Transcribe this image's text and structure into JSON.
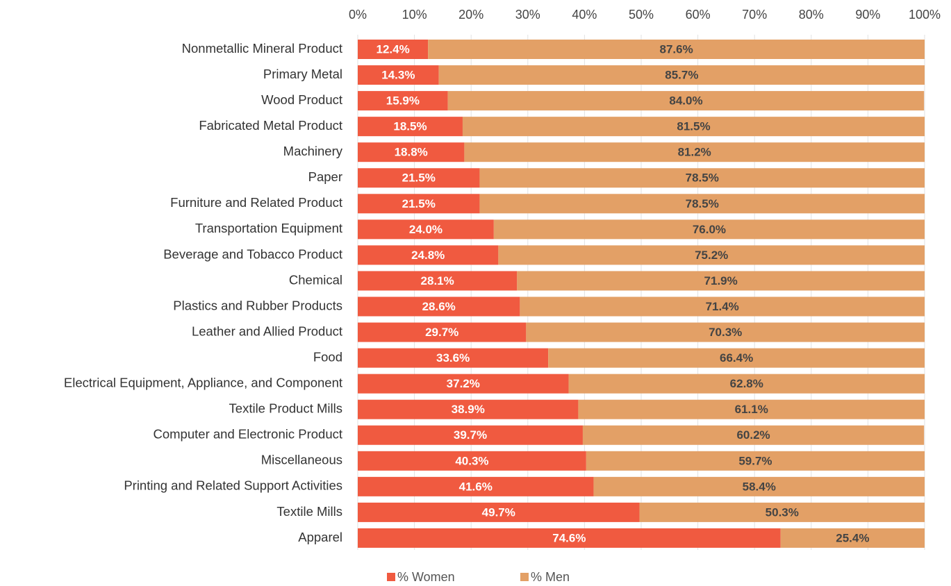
{
  "chart_data": {
    "type": "stacked_barh",
    "categories": [
      "Nonmetallic Mineral Product",
      "Primary Metal",
      "Wood Product",
      "Fabricated Metal Product",
      "Machinery",
      "Paper",
      "Furniture and Related Product",
      "Transportation Equipment",
      "Beverage and Tobacco Product",
      "Chemical",
      "Plastics and Rubber Products",
      "Leather and Allied Product",
      "Food",
      "Electrical Equipment, Appliance, and Component",
      "Textile Product Mills",
      "Computer and Electronic Product",
      "Miscellaneous",
      "Printing and Related Support Activities",
      "Textile Mills",
      "Apparel"
    ],
    "series": [
      {
        "name": "% Women",
        "color": "#f05a40",
        "values": [
          12.4,
          14.3,
          15.9,
          18.5,
          18.8,
          21.5,
          21.5,
          24.0,
          24.8,
          28.1,
          28.6,
          29.7,
          33.6,
          37.2,
          38.9,
          39.7,
          40.3,
          41.6,
          49.7,
          74.6
        ],
        "value_labels": [
          "12.4%",
          "14.3%",
          "15.9%",
          "18.5%",
          "18.8%",
          "21.5%",
          "21.5%",
          "24.0%",
          "24.8%",
          "28.1%",
          "28.6%",
          "29.7%",
          "33.6%",
          "37.2%",
          "38.9%",
          "39.7%",
          "40.3%",
          "41.6%",
          "49.7%",
          "74.6%"
        ]
      },
      {
        "name": "% Men",
        "color": "#e3a066",
        "values": [
          87.6,
          85.7,
          84.0,
          81.5,
          81.2,
          78.5,
          78.5,
          76.0,
          75.2,
          71.9,
          71.4,
          70.3,
          66.4,
          62.8,
          61.1,
          60.2,
          59.7,
          58.4,
          50.3,
          25.4
        ],
        "value_labels": [
          "87.6%",
          "85.7%",
          "84.0%",
          "81.5%",
          "81.2%",
          "78.5%",
          "78.5%",
          "76.0%",
          "75.2%",
          "71.9%",
          "71.4%",
          "70.3%",
          "66.4%",
          "62.8%",
          "61.1%",
          "60.2%",
          "59.7%",
          "58.4%",
          "50.3%",
          "25.4%"
        ]
      }
    ],
    "xlim": [
      0,
      100
    ],
    "xticks": [
      {
        "value": 0,
        "label": "0%"
      },
      {
        "value": 10,
        "label": "10%"
      },
      {
        "value": 20,
        "label": "20%"
      },
      {
        "value": 30,
        "label": "30%"
      },
      {
        "value": 40,
        "label": "40%"
      },
      {
        "value": 50,
        "label": "50%"
      },
      {
        "value": 60,
        "label": "60%"
      },
      {
        "value": 70,
        "label": "70%"
      },
      {
        "value": 80,
        "label": "80%"
      },
      {
        "value": 90,
        "label": "90%"
      },
      {
        "value": 100,
        "label": "100%"
      }
    ],
    "grid": true,
    "legend": "bottom"
  }
}
